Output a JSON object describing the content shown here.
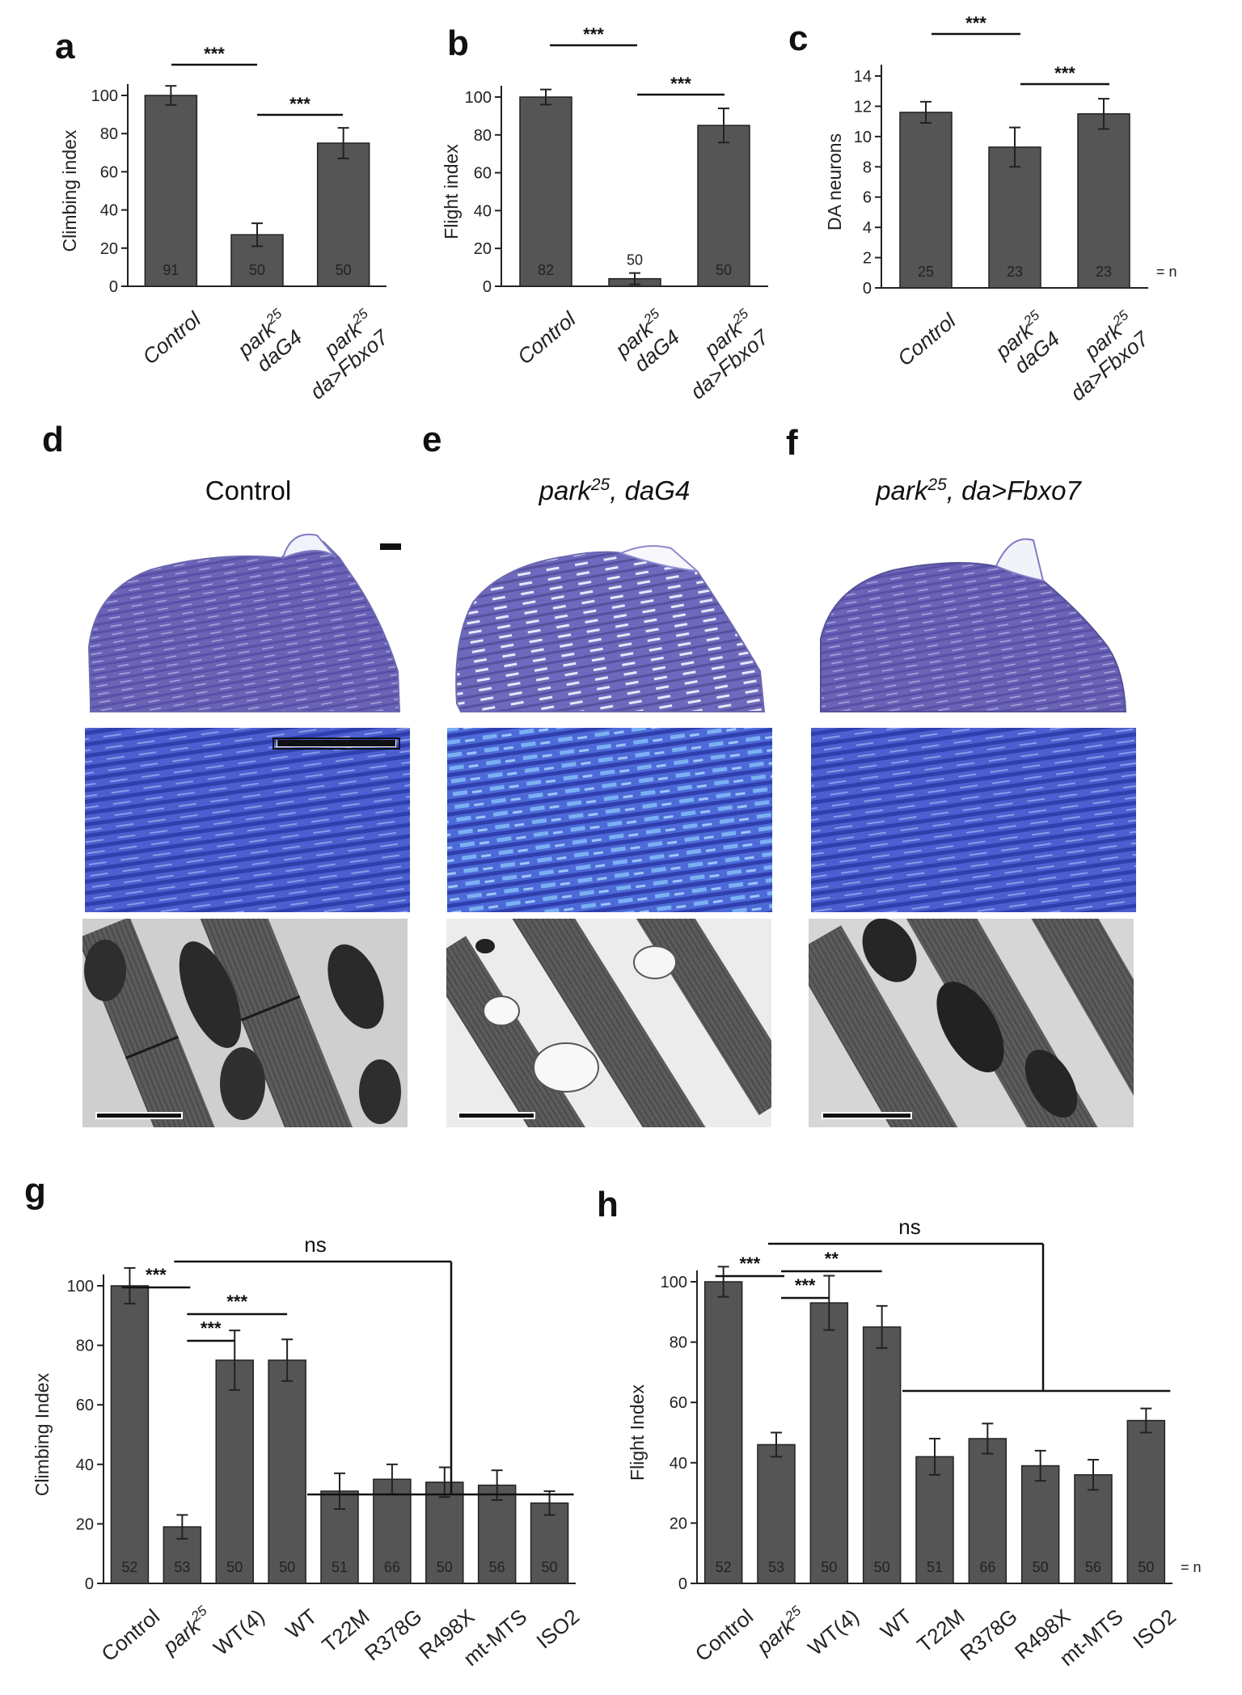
{
  "panel_labels": {
    "a": "a",
    "b": "b",
    "c": "c",
    "d": "d",
    "e": "e",
    "f": "f",
    "g": "g",
    "h": "h"
  },
  "images": {
    "titles": [
      "Control",
      "park25, daG4",
      "park25, da>Fbxo7"
    ],
    "row_names": [
      "section-lowmag",
      "section-highmag",
      "electron-micrograph"
    ]
  },
  "chart_data": [
    {
      "id": "a",
      "type": "bar",
      "ylabel": "Climbing index",
      "ylim": [
        0,
        100
      ],
      "yticks": [
        0,
        20,
        40,
        60,
        80,
        100
      ],
      "categories": [
        "Control",
        "park25 daG4",
        "park25 da>Fbxo7"
      ],
      "values": [
        100,
        27,
        75
      ],
      "errors": [
        5,
        6,
        8
      ],
      "n": [
        "91",
        "50",
        "50"
      ],
      "significance": [
        {
          "from": 0,
          "to": 1,
          "label": "***"
        },
        {
          "from": 1,
          "to": 2,
          "label": "***"
        }
      ]
    },
    {
      "id": "b",
      "type": "bar",
      "ylabel": "Flight index",
      "ylim": [
        0,
        100
      ],
      "yticks": [
        0,
        20,
        40,
        60,
        80,
        100
      ],
      "categories": [
        "Control",
        "park25 daG4",
        "park25 da>Fbxo7"
      ],
      "values": [
        100,
        4,
        85
      ],
      "errors": [
        4,
        3,
        9
      ],
      "n": [
        "82",
        "50",
        "50"
      ],
      "significance": [
        {
          "from": 0,
          "to": 1,
          "label": "***"
        },
        {
          "from": 1,
          "to": 2,
          "label": "***"
        }
      ]
    },
    {
      "id": "c",
      "type": "bar",
      "ylabel": "DA neurons",
      "ylim": [
        0,
        14
      ],
      "yticks": [
        0,
        2,
        4,
        6,
        8,
        10,
        12,
        14
      ],
      "categories": [
        "Control",
        "park25 daG4",
        "park25 da>Fbxo7"
      ],
      "values": [
        11.6,
        9.3,
        11.5
      ],
      "errors": [
        0.7,
        1.3,
        1.0
      ],
      "n": [
        "25",
        "23",
        "23"
      ],
      "n_suffix": "= n",
      "significance": [
        {
          "from": 0,
          "to": 1,
          "label": "***"
        },
        {
          "from": 1,
          "to": 2,
          "label": "***"
        }
      ]
    },
    {
      "id": "g",
      "type": "bar",
      "ylabel": "Climbing Index",
      "ylim": [
        0,
        100
      ],
      "yticks": [
        0,
        20,
        40,
        60,
        80,
        100
      ],
      "categories": [
        "Control",
        "park25",
        "WT(4)",
        "WT",
        "T22M",
        "R378G",
        "R498X",
        "mt-MTS",
        "ISO2"
      ],
      "values": [
        100,
        19,
        75,
        75,
        31,
        35,
        34,
        33,
        27
      ],
      "errors": [
        6,
        4,
        10,
        7,
        6,
        5,
        5,
        5,
        4
      ],
      "n": [
        "52",
        "53",
        "50",
        "50",
        "51",
        "66",
        "50",
        "56",
        "50"
      ],
      "significance": [
        {
          "from": 0,
          "to": 1,
          "label": "***"
        },
        {
          "from": 1,
          "to": 2,
          "label": "***"
        },
        {
          "from": 1,
          "to": 3,
          "label": "***"
        },
        {
          "bracket_from": 1,
          "group": [
            4,
            8
          ],
          "label": "ns"
        }
      ]
    },
    {
      "id": "h",
      "type": "bar",
      "ylabel": "Flight Index",
      "ylim": [
        0,
        100
      ],
      "yticks": [
        0,
        20,
        40,
        60,
        80,
        100
      ],
      "categories": [
        "Control",
        "park25",
        "WT(4)",
        "WT",
        "T22M",
        "R378G",
        "R498X",
        "mt-MTS",
        "ISO2"
      ],
      "values": [
        100,
        46,
        93,
        85,
        42,
        48,
        39,
        36,
        54
      ],
      "errors": [
        5,
        4,
        9,
        7,
        6,
        5,
        5,
        5,
        4
      ],
      "n": [
        "52",
        "53",
        "50",
        "50",
        "51",
        "66",
        "50",
        "56",
        "50"
      ],
      "n_suffix": "= n",
      "significance": [
        {
          "from": 0,
          "to": 1,
          "label": "***"
        },
        {
          "from": 1,
          "to": 2,
          "label": "***"
        },
        {
          "from": 1,
          "to": 3,
          "label": "**"
        },
        {
          "bracket_from": 1,
          "group": [
            4,
            8
          ],
          "label": "ns"
        }
      ]
    }
  ]
}
